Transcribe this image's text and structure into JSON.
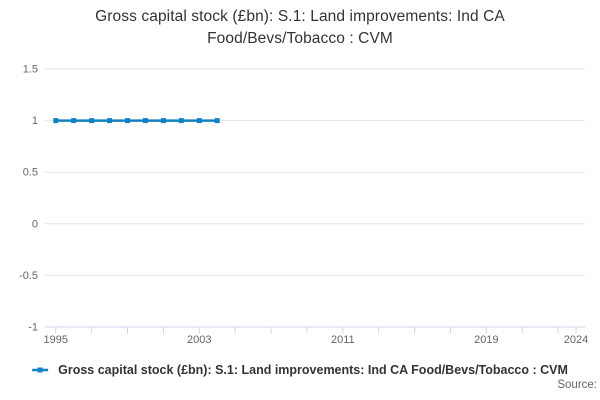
{
  "header": {
    "title_lines": [
      "Gross capital stock (£bn): S.1: Land improvements: Ind CA",
      "Food/Bevs/Tobacco : CVM"
    ]
  },
  "chart_data": {
    "type": "line",
    "title": "Gross capital stock (£bn): S.1: Land improvements: Ind CA Food/Bevs/Tobacco : CVM",
    "x": [
      1995,
      1996,
      1997,
      1998,
      1999,
      2000,
      2001,
      2002,
      2003,
      2004
    ],
    "series": [
      {
        "name": "Gross capital stock (£bn): S.1: Land improvements: Ind CA Food/Bevs/Tobacco : CVM",
        "color": "#1380C4",
        "values": [
          1,
          1,
          1,
          1,
          1,
          1,
          1,
          1,
          1,
          1
        ]
      }
    ],
    "xlim": [
      1994.4,
      2024.5
    ],
    "ylim": [
      -1,
      1.5
    ],
    "y_ticks": [
      1.5,
      1,
      0.5,
      0,
      -0.5,
      -1
    ],
    "x_ticks": [
      1995,
      1997,
      1999,
      2001,
      2003,
      2005,
      2007,
      2009,
      2011,
      2013,
      2015,
      2017,
      2019,
      2021,
      2023,
      2024
    ],
    "x_labeled_ticks": [
      1995,
      2003,
      2011,
      2019,
      2024
    ],
    "grid": true,
    "legend_position": "bottom",
    "colors": {
      "grid": "#e6e6e6",
      "axis_line": "#ccd6eb",
      "tick_label": "#666666",
      "title": "#333333"
    }
  },
  "legend": {
    "label": "Gross capital stock (£bn): S.1: Land improvements: Ind CA Food/Bevs/Tobacco : CVM"
  },
  "footer": {
    "source_label": "Source:"
  }
}
